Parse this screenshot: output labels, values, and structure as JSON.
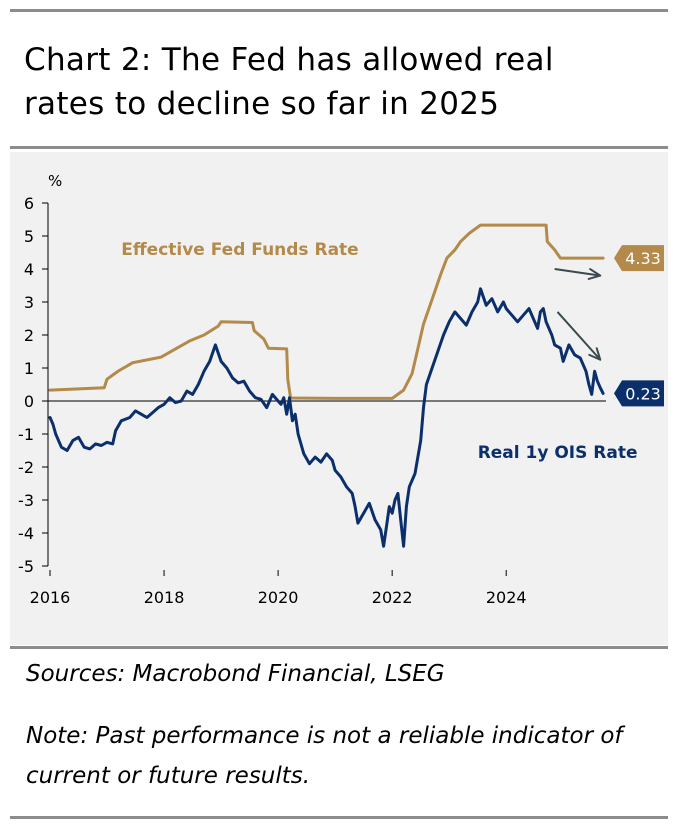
{
  "title": "Chart 2: The Fed has allowed real rates to decline so far in 2025",
  "sources": "Sources: Macrobond Financial, LSEG",
  "note": "Note: Past performance is not a reliable indicator of current or future results.",
  "colors": {
    "fed": "#b38a49",
    "ois": "#0b2f6b",
    "arrow": "#3a4a4f",
    "rule": "#8c8c8c",
    "panel": "#f1f1f1"
  },
  "chart_data": {
    "type": "line",
    "ylabel": "%",
    "xlim": [
      2016,
      2025.75
    ],
    "ylim": [
      -5,
      6
    ],
    "yticks": [
      "6",
      "5",
      "4",
      "3",
      "2",
      "1",
      "0",
      "-1",
      "-2",
      "-3",
      "-4",
      "-5"
    ],
    "xticks": [
      "2016",
      "2018",
      "2020",
      "2022",
      "2024"
    ],
    "series": [
      {
        "name": "Effective Fed Funds Rate",
        "end_label": "4.33",
        "points": [
          [
            2016.0,
            0.33
          ],
          [
            2016.95,
            0.4
          ],
          [
            2017.0,
            0.66
          ],
          [
            2017.2,
            0.91
          ],
          [
            2017.45,
            1.16
          ],
          [
            2017.95,
            1.33
          ],
          [
            2018.2,
            1.58
          ],
          [
            2018.45,
            1.82
          ],
          [
            2018.7,
            2.0
          ],
          [
            2018.95,
            2.27
          ],
          [
            2019.0,
            2.4
          ],
          [
            2019.55,
            2.38
          ],
          [
            2019.58,
            2.13
          ],
          [
            2019.75,
            1.88
          ],
          [
            2019.83,
            1.6
          ],
          [
            2020.15,
            1.58
          ],
          [
            2020.17,
            0.65
          ],
          [
            2020.22,
            0.09
          ],
          [
            2021.0,
            0.08
          ],
          [
            2022.0,
            0.08
          ],
          [
            2022.2,
            0.33
          ],
          [
            2022.35,
            0.83
          ],
          [
            2022.45,
            1.58
          ],
          [
            2022.55,
            2.33
          ],
          [
            2022.7,
            3.08
          ],
          [
            2022.85,
            3.83
          ],
          [
            2022.96,
            4.33
          ],
          [
            2023.1,
            4.58
          ],
          [
            2023.2,
            4.83
          ],
          [
            2023.35,
            5.08
          ],
          [
            2023.55,
            5.33
          ],
          [
            2024.7,
            5.33
          ],
          [
            2024.72,
            4.83
          ],
          [
            2024.85,
            4.58
          ],
          [
            2024.95,
            4.33
          ],
          [
            2025.7,
            4.33
          ]
        ]
      },
      {
        "name": "Real 1y OIS Rate",
        "end_label": "0.23",
        "points": [
          [
            2016.0,
            -0.5
          ],
          [
            2016.05,
            -0.7
          ],
          [
            2016.1,
            -1.0
          ],
          [
            2016.2,
            -1.4
          ],
          [
            2016.3,
            -1.5
          ],
          [
            2016.4,
            -1.2
          ],
          [
            2016.5,
            -1.1
          ],
          [
            2016.6,
            -1.4
          ],
          [
            2016.7,
            -1.45
          ],
          [
            2016.8,
            -1.3
          ],
          [
            2016.9,
            -1.35
          ],
          [
            2017.0,
            -1.25
          ],
          [
            2017.1,
            -1.3
          ],
          [
            2017.15,
            -0.9
          ],
          [
            2017.25,
            -0.6
          ],
          [
            2017.4,
            -0.5
          ],
          [
            2017.5,
            -0.3
          ],
          [
            2017.6,
            -0.4
          ],
          [
            2017.7,
            -0.5
          ],
          [
            2017.8,
            -0.35
          ],
          [
            2017.9,
            -0.2
          ],
          [
            2018.0,
            -0.1
          ],
          [
            2018.1,
            0.1
          ],
          [
            2018.2,
            -0.05
          ],
          [
            2018.3,
            0.0
          ],
          [
            2018.4,
            0.3
          ],
          [
            2018.5,
            0.2
          ],
          [
            2018.6,
            0.5
          ],
          [
            2018.7,
            0.9
          ],
          [
            2018.8,
            1.2
          ],
          [
            2018.9,
            1.7
          ],
          [
            2019.0,
            1.2
          ],
          [
            2019.1,
            1.0
          ],
          [
            2019.2,
            0.7
          ],
          [
            2019.3,
            0.55
          ],
          [
            2019.4,
            0.6
          ],
          [
            2019.5,
            0.3
          ],
          [
            2019.6,
            0.1
          ],
          [
            2019.7,
            0.05
          ],
          [
            2019.8,
            -0.2
          ],
          [
            2019.9,
            0.2
          ],
          [
            2020.0,
            0.0
          ],
          [
            2020.05,
            -0.1
          ],
          [
            2020.1,
            0.1
          ],
          [
            2020.15,
            -0.4
          ],
          [
            2020.2,
            0.1
          ],
          [
            2020.25,
            -0.6
          ],
          [
            2020.3,
            -0.4
          ],
          [
            2020.35,
            -1.0
          ],
          [
            2020.45,
            -1.6
          ],
          [
            2020.55,
            -1.9
          ],
          [
            2020.65,
            -1.7
          ],
          [
            2020.75,
            -1.85
          ],
          [
            2020.85,
            -1.6
          ],
          [
            2020.95,
            -1.8
          ],
          [
            2021.0,
            -2.1
          ],
          [
            2021.1,
            -2.3
          ],
          [
            2021.2,
            -2.6
          ],
          [
            2021.3,
            -2.8
          ],
          [
            2021.35,
            -3.2
          ],
          [
            2021.4,
            -3.7
          ],
          [
            2021.5,
            -3.4
          ],
          [
            2021.6,
            -3.1
          ],
          [
            2021.7,
            -3.6
          ],
          [
            2021.8,
            -3.9
          ],
          [
            2021.85,
            -4.4
          ],
          [
            2021.9,
            -3.8
          ],
          [
            2021.95,
            -3.2
          ],
          [
            2022.0,
            -3.4
          ],
          [
            2022.05,
            -3.0
          ],
          [
            2022.1,
            -2.8
          ],
          [
            2022.15,
            -3.6
          ],
          [
            2022.2,
            -4.4
          ],
          [
            2022.25,
            -3.2
          ],
          [
            2022.3,
            -2.6
          ],
          [
            2022.4,
            -2.2
          ],
          [
            2022.5,
            -1.2
          ],
          [
            2022.55,
            -0.2
          ],
          [
            2022.6,
            0.5
          ],
          [
            2022.7,
            1.0
          ],
          [
            2022.8,
            1.5
          ],
          [
            2022.9,
            2.0
          ],
          [
            2023.0,
            2.4
          ],
          [
            2023.1,
            2.7
          ],
          [
            2023.2,
            2.5
          ],
          [
            2023.3,
            2.3
          ],
          [
            2023.4,
            2.7
          ],
          [
            2023.5,
            3.0
          ],
          [
            2023.55,
            3.4
          ],
          [
            2023.65,
            2.9
          ],
          [
            2023.75,
            3.1
          ],
          [
            2023.85,
            2.7
          ],
          [
            2023.95,
            3.0
          ],
          [
            2024.0,
            2.8
          ],
          [
            2024.1,
            2.6
          ],
          [
            2024.2,
            2.4
          ],
          [
            2024.3,
            2.6
          ],
          [
            2024.4,
            2.8
          ],
          [
            2024.5,
            2.4
          ],
          [
            2024.55,
            2.2
          ],
          [
            2024.6,
            2.7
          ],
          [
            2024.65,
            2.8
          ],
          [
            2024.7,
            2.4
          ],
          [
            2024.8,
            2.0
          ],
          [
            2024.85,
            1.7
          ],
          [
            2024.95,
            1.6
          ],
          [
            2025.0,
            1.2
          ],
          [
            2025.1,
            1.7
          ],
          [
            2025.2,
            1.4
          ],
          [
            2025.3,
            1.3
          ],
          [
            2025.4,
            0.9
          ],
          [
            2025.45,
            0.5
          ],
          [
            2025.5,
            0.2
          ],
          [
            2025.55,
            0.9
          ],
          [
            2025.6,
            0.6
          ],
          [
            2025.65,
            0.4
          ],
          [
            2025.7,
            0.23
          ]
        ]
      }
    ],
    "annotations": [
      {
        "text": "Effective Fed Funds Rate",
        "x": 2017.25,
        "y": 4.42,
        "series": 0
      },
      {
        "text": "Real 1y OIS Rate",
        "x": 2023.5,
        "y": -1.72,
        "series": 1
      }
    ],
    "arrows": [
      {
        "from": [
          2024.85,
          4.0
        ],
        "to": [
          2025.65,
          3.8
        ]
      },
      {
        "from": [
          2024.9,
          2.7
        ],
        "to": [
          2025.65,
          1.25
        ]
      }
    ]
  }
}
